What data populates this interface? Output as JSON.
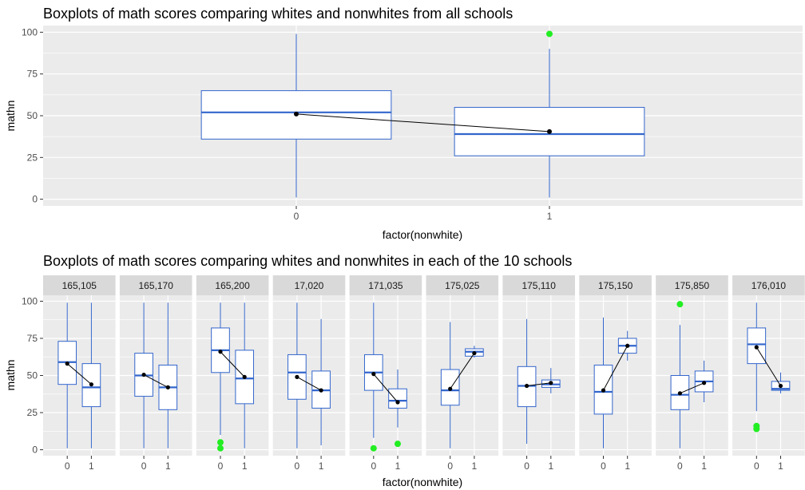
{
  "colors": {
    "panel_bg": "#ebebeb",
    "grid": "#ffffff",
    "strip_bg": "#d9d9d9",
    "box_line": "#3366cc",
    "box_fill": "#ffffff",
    "outlier": "#22ee22",
    "mean_point": "#000000",
    "mean_line": "#000000"
  },
  "chart_data": [
    {
      "type": "boxplot",
      "title": "Boxplots of math scores comparing whites and nonwhites from all schools",
      "xlabel": "factor(nonwhite)",
      "ylabel": "mathn",
      "ylim": [
        -4,
        104
      ],
      "yticks": [
        0,
        25,
        50,
        75,
        100
      ],
      "categories": [
        "0",
        "1"
      ],
      "boxes": [
        {
          "category": "0",
          "min": 1,
          "q1": 36,
          "median": 52,
          "q3": 65,
          "max": 99,
          "mean": 51,
          "outliers": []
        },
        {
          "category": "1",
          "min": 1,
          "q1": 26,
          "median": 39,
          "q3": 55,
          "max": 90,
          "mean": 40.5,
          "outliers": [
            99
          ]
        }
      ]
    },
    {
      "type": "boxplot",
      "title": "Boxplots of math scores comparing whites and nonwhites in each of the 10 schools",
      "xlabel": "factor(nonwhite)",
      "ylabel": "mathn",
      "ylim": [
        -4,
        104
      ],
      "yticks": [
        0,
        25,
        50,
        75,
        100
      ],
      "categories": [
        "0",
        "1"
      ],
      "facets": [
        {
          "label": "165,105",
          "boxes": [
            {
              "category": "0",
              "min": 1,
              "q1": 44,
              "median": 59,
              "q3": 73,
              "max": 99,
              "mean": 58,
              "outliers": []
            },
            {
              "category": "1",
              "min": 1,
              "q1": 29,
              "median": 42,
              "q3": 58,
              "max": 99,
              "mean": 44,
              "outliers": []
            }
          ]
        },
        {
          "label": "165,170",
          "boxes": [
            {
              "category": "0",
              "min": 1,
              "q1": 36,
              "median": 50,
              "q3": 65,
              "max": 99,
              "mean": 50.5,
              "outliers": []
            },
            {
              "category": "1",
              "min": 1,
              "q1": 27,
              "median": 42,
              "q3": 57,
              "max": 99,
              "mean": 42,
              "outliers": []
            }
          ]
        },
        {
          "label": "165,200",
          "boxes": [
            {
              "category": "0",
              "min": 10,
              "q1": 52,
              "median": 67,
              "q3": 82,
              "max": 99,
              "mean": 66,
              "outliers": [
                1,
                5
              ]
            },
            {
              "category": "1",
              "min": 1,
              "q1": 31,
              "median": 48,
              "q3": 67,
              "max": 99,
              "mean": 49,
              "outliers": []
            }
          ]
        },
        {
          "label": "17,020",
          "boxes": [
            {
              "category": "0",
              "min": 1,
              "q1": 34,
              "median": 52,
              "q3": 64,
              "max": 99,
              "mean": 49,
              "outliers": []
            },
            {
              "category": "1",
              "min": 3,
              "q1": 28,
              "median": 40,
              "q3": 53,
              "max": 88,
              "mean": 40,
              "outliers": []
            }
          ]
        },
        {
          "label": "171,035",
          "boxes": [
            {
              "category": "0",
              "min": 8,
              "q1": 40,
              "median": 52,
              "q3": 64,
              "max": 99,
              "mean": 51,
              "outliers": [
                1
              ]
            },
            {
              "category": "1",
              "min": 15,
              "q1": 28,
              "median": 33,
              "q3": 41,
              "max": 54,
              "mean": 32,
              "outliers": [
                4
              ]
            }
          ]
        },
        {
          "label": "175,025",
          "boxes": [
            {
              "category": "0",
              "min": 1,
              "q1": 30,
              "median": 40,
              "q3": 54,
              "max": 86,
              "mean": 41,
              "outliers": []
            },
            {
              "category": "1",
              "min": 62,
              "q1": 63,
              "median": 66,
              "q3": 68,
              "max": 70,
              "mean": 65,
              "outliers": []
            }
          ]
        },
        {
          "label": "175,110",
          "boxes": [
            {
              "category": "0",
              "min": 4,
              "q1": 29,
              "median": 43,
              "q3": 56,
              "max": 88,
              "mean": 43,
              "outliers": []
            },
            {
              "category": "1",
              "min": 38,
              "q1": 42,
              "median": 44,
              "q3": 47,
              "max": 55,
              "mean": 45,
              "outliers": []
            }
          ]
        },
        {
          "label": "175,150",
          "boxes": [
            {
              "category": "0",
              "min": 1,
              "q1": 24,
              "median": 39,
              "q3": 57,
              "max": 89,
              "mean": 40,
              "outliers": []
            },
            {
              "category": "1",
              "min": 60,
              "q1": 65,
              "median": 70,
              "q3": 75,
              "max": 80,
              "mean": 70,
              "outliers": []
            }
          ]
        },
        {
          "label": "175,850",
          "boxes": [
            {
              "category": "0",
              "min": 1,
              "q1": 27,
              "median": 37,
              "q3": 50,
              "max": 84,
              "mean": 38,
              "outliers": [
                98
              ]
            },
            {
              "category": "1",
              "min": 32,
              "q1": 39,
              "median": 46,
              "q3": 53,
              "max": 60,
              "mean": 45,
              "outliers": []
            }
          ]
        },
        {
          "label": "176,010",
          "boxes": [
            {
              "category": "0",
              "min": 26,
              "q1": 58,
              "median": 71,
              "q3": 82,
              "max": 99,
              "mean": 69,
              "outliers": [
                14,
                16
              ]
            },
            {
              "category": "1",
              "min": 38,
              "q1": 40,
              "median": 41,
              "q3": 46,
              "max": 52,
              "mean": 43,
              "outliers": []
            }
          ]
        }
      ]
    }
  ]
}
